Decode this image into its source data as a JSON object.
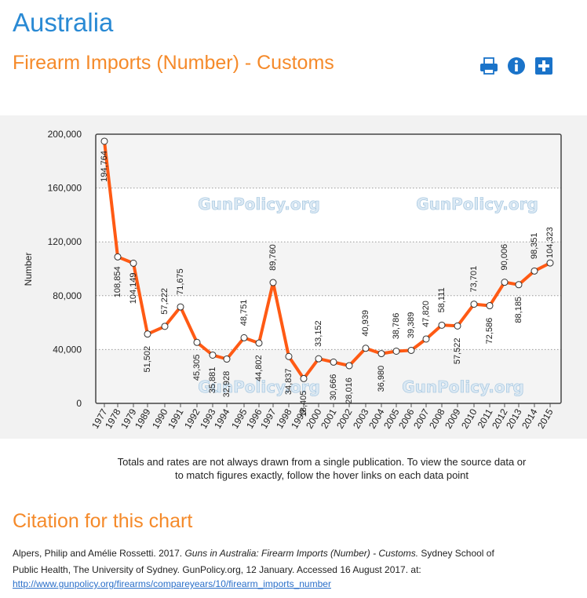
{
  "page": {
    "country": "Australia",
    "title": "Firearm Imports (Number) - Customs"
  },
  "toolbar": {
    "icons": [
      "printer-icon",
      "info-icon",
      "add-icon"
    ]
  },
  "watermark": "GunPolicy.org",
  "note": {
    "line1": "Totals and rates are not always drawn from a single publication. To view the source data or",
    "line2": "to match figures exactly, follow the hover links on each data point"
  },
  "citation": {
    "heading": "Citation for this chart",
    "authors": "Alpers, Philip and Amélie Rossetti. 2017. ",
    "work": "Guns in Australia: Firearm Imports (Number) - Customs.",
    "publisher": " Sydney School of",
    "line2": "Public Health, The University of Sydney. GunPolicy.org, 12 January.  Accessed 16 August 2017. at:",
    "url": "http://www.gunpolicy.org/firearms/compareyears/10/firearm_imports_number"
  },
  "chart_data": {
    "type": "line",
    "ylabel": "Number",
    "xlabel": "",
    "ylim": [
      0,
      200000
    ],
    "yticks": [
      0,
      40000,
      80000,
      120000,
      160000,
      200000
    ],
    "ytick_labels": [
      "0",
      "40,000",
      "80,000",
      "120,000",
      "160,000",
      "200,000"
    ],
    "grid": "horizontal dotted",
    "line_color": "#ff5a14",
    "categories": [
      "1977",
      "1978",
      "1979",
      "1989",
      "1990",
      "1991",
      "1992",
      "1993",
      "1994",
      "1995",
      "1996",
      "1997",
      "1998",
      "1999",
      "2000",
      "2001",
      "2002",
      "2003",
      "2004",
      "2005",
      "2006",
      "2007",
      "2008",
      "2009",
      "2010",
      "2011",
      "2012",
      "2013",
      "2014",
      "2015"
    ],
    "values": [
      194764,
      108854,
      104149,
      51502,
      57222,
      71675,
      45305,
      35881,
      32928,
      48751,
      44802,
      89760,
      34837,
      18405,
      33152,
      30666,
      28016,
      40939,
      36980,
      38786,
      39389,
      47820,
      58111,
      57522,
      73701,
      72586,
      90006,
      88185,
      98351,
      104323
    ],
    "value_labels": [
      "194,764",
      "108,854",
      "104,149",
      "51,502",
      "57,222",
      "71,675",
      "45,305",
      "35,881",
      "32,928",
      "48,751",
      "44,802",
      "89,760",
      "34,837",
      "18,405",
      "33,152",
      "30,666",
      "28,016",
      "40,939",
      "36,980",
      "38,786",
      "39,389",
      "47,820",
      "58,111",
      "57,522",
      "73,701",
      "72,586",
      "90,006",
      "88,185",
      "98,351",
      "104,323"
    ]
  }
}
